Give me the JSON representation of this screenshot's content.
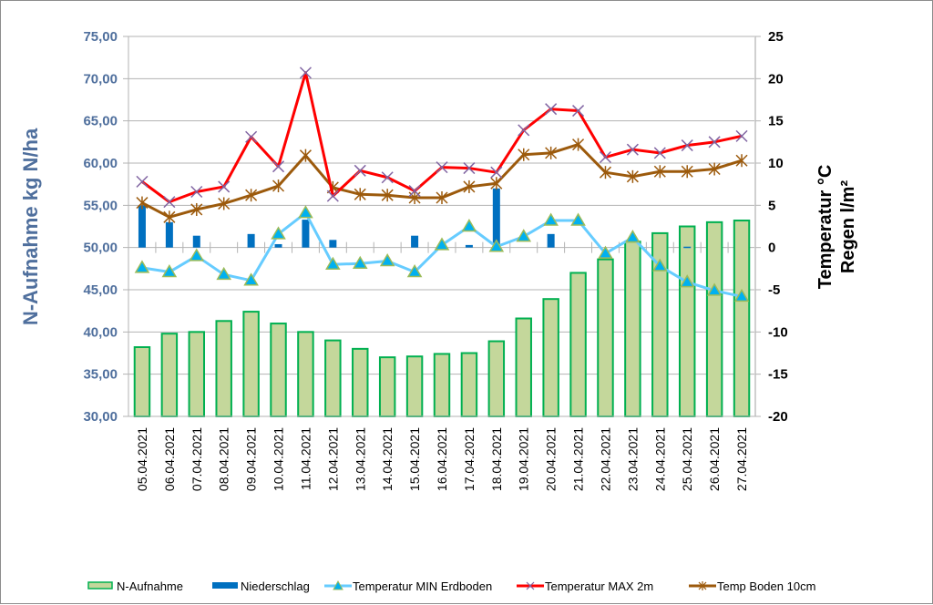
{
  "chart_data": {
    "type": "bar",
    "title": "",
    "categories": [
      "05.04.2021",
      "06.04.2021",
      "07.04.2021",
      "08.04.2021",
      "09.04.2021",
      "10.04.2021",
      "11.04.2021",
      "12.04.2021",
      "13.04.2021",
      "14.04.2021",
      "15.04.2021",
      "16.04.2021",
      "17.04.2021",
      "18.04.2021",
      "19.04.2021",
      "20.04.2021",
      "21.04.2021",
      "22.04.2021",
      "23.04.2021",
      "24.04.2021",
      "25.04.2021",
      "26.04.2021",
      "27.04.2021"
    ],
    "ylabel": "N-Aufnahme kg N/ha",
    "ylabel_right": [
      "Temperatur °C",
      "Regen l/m²"
    ],
    "ylim": [
      30,
      75
    ],
    "ylim_right": [
      -20,
      25
    ],
    "yticks_left": [
      "30,00",
      "35,00",
      "40,00",
      "45,00",
      "50,00",
      "55,00",
      "60,00",
      "65,00",
      "70,00",
      "75,00"
    ],
    "yticks_right": [
      "-20",
      "-15",
      "-10",
      "-5",
      "0",
      "5",
      "10",
      "15",
      "20",
      "25"
    ],
    "grid": true,
    "legend_position": "bottom",
    "series": [
      {
        "name": "N-Aufnahme",
        "type": "bar",
        "axis": "left",
        "color": "#c4d79b",
        "edge": "#00b050",
        "values": [
          38.2,
          39.8,
          40.0,
          41.3,
          42.4,
          41.0,
          40.0,
          39.0,
          38.0,
          37.0,
          37.1,
          37.4,
          37.5,
          38.9,
          41.6,
          43.9,
          47.0,
          48.6,
          50.7,
          51.7,
          52.5,
          53.0,
          53.2
        ]
      },
      {
        "name": "Niederschlag",
        "type": "bar",
        "axis": "right",
        "color": "#0070c0",
        "values": [
          5.0,
          3.0,
          1.4,
          0,
          1.6,
          0.4,
          3.3,
          0.9,
          0,
          0,
          1.4,
          0.5,
          0.3,
          7.0,
          0,
          1.6,
          0,
          0,
          0,
          0,
          0.1,
          0,
          0
        ]
      },
      {
        "name": "Temperatur MIN Erdboden",
        "type": "line",
        "axis": "right",
        "color": "#66ccff",
        "marker": "triangle",
        "marker_color": "#00b0f0",
        "marker_edge": "#9bbb59",
        "values": [
          -2.4,
          -2.9,
          -1.0,
          -3.2,
          -3.9,
          1.6,
          4.1,
          -2.0,
          -1.9,
          -1.6,
          -2.9,
          0.3,
          2.5,
          0.1,
          1.3,
          3.2,
          3.2,
          -0.7,
          1.2,
          -2.2,
          -4.1,
          -5.1,
          -5.8
        ]
      },
      {
        "name": "Temperatur MAX 2m",
        "type": "line",
        "axis": "right",
        "color": "#ff0000",
        "marker": "x",
        "marker_color": "#8064a2",
        "values": [
          7.8,
          5.4,
          6.6,
          7.2,
          13.1,
          9.6,
          20.7,
          6.1,
          9.1,
          8.3,
          6.7,
          9.5,
          9.4,
          8.9,
          13.9,
          16.4,
          16.2,
          10.7,
          11.6,
          11.2,
          12.1,
          12.5,
          13.2
        ]
      },
      {
        "name": "Temp Boden 10cm",
        "type": "line",
        "axis": "right",
        "color": "#9c5a0c",
        "marker": "star",
        "marker_color": "#9c5a0c",
        "values": [
          5.3,
          3.6,
          4.5,
          5.2,
          6.2,
          7.3,
          10.9,
          7.1,
          6.3,
          6.2,
          5.9,
          5.9,
          7.2,
          7.6,
          11.0,
          11.2,
          12.2,
          8.9,
          8.4,
          9.0,
          9.0,
          9.3,
          10.3
        ]
      }
    ]
  },
  "colors": {
    "left_axis_text": "#4f6f9d",
    "gridline": "#b3b3b3"
  }
}
